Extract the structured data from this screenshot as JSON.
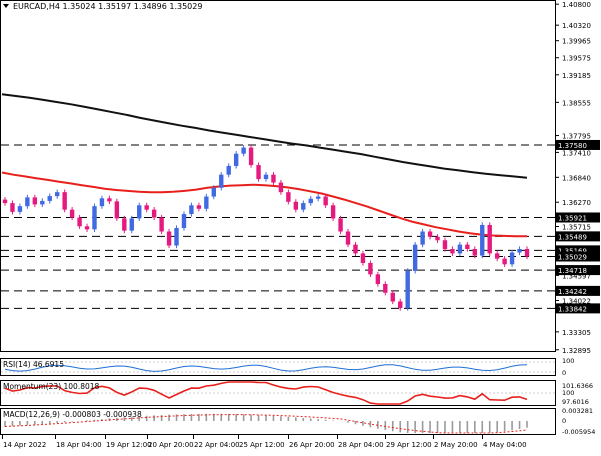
{
  "header": {
    "symbol_line": "EURCAD,H4  1.35024 1.35197 1.34896 1.35029",
    "menu_arrow": "triangle-down-icon"
  },
  "colors": {
    "bull": "#4169e1",
    "bear": "#e6197f",
    "ma_fast": "#e8201c",
    "ma_slow": "#111111",
    "rsi": "#1e6fd9",
    "momentum": "#e8201c",
    "macd_hist": "#9a9a9a",
    "macd_signal": "#e8201c"
  },
  "price_axis": {
    "labels": [
      "1.40800",
      "1.40320",
      "1.39965",
      "1.39575",
      "1.39185",
      "1.38555",
      "1.37795",
      "1.37410",
      "1.36840",
      "1.36270",
      "1.35715",
      "1.34597",
      "1.34022",
      "1.33305",
      "1.32895"
    ]
  },
  "level_boxes": [
    {
      "label": "1.37580",
      "style": "dark"
    },
    {
      "label": "1.35921",
      "style": "dark"
    },
    {
      "label": "1.35489",
      "style": "dark"
    },
    {
      "label": "1.35169",
      "style": "dark"
    },
    {
      "label": "1.35029",
      "style": "dark"
    },
    {
      "label": "1.34718",
      "style": "dark"
    },
    {
      "label": "1.34242",
      "style": "dark"
    },
    {
      "label": "1.33842",
      "style": "dark"
    }
  ],
  "time_axis": {
    "labels": [
      "14 Apr 2022",
      "18 Apr 04:00",
      "19 Apr 12:00",
      "20 Apr 20:00",
      "22 Apr 04:00",
      "25 Apr 12:00",
      "26 Apr 20:00",
      "28 Apr 04:00",
      "29 Apr 12:00",
      "2 May 20:00",
      "4 May 04:00"
    ]
  },
  "indicators": {
    "rsi": {
      "label": "RSI(14) 46.6915",
      "axis": [
        "100",
        "0"
      ]
    },
    "momentum": {
      "label": "Momentum(23) 100.8018",
      "axis": [
        "101.6366",
        "100",
        "97.6016"
      ]
    },
    "macd": {
      "label": "MACD(12,26,9) -0.000803 -0.000938",
      "axis": [
        "0.003281",
        "0",
        "-0.005954"
      ]
    }
  },
  "chart_data": {
    "type": "candlestick",
    "title": "EURCAD,H4",
    "ohlc_readout": [
      1.35024,
      1.35197,
      1.34896,
      1.35029
    ],
    "ylim": [
      1.3289,
      1.4085
    ],
    "horizontal_levels": [
      1.3758,
      1.35921,
      1.35489,
      1.35169,
      1.35029,
      1.34718,
      1.34242,
      1.33842
    ],
    "candles_close": [
      1.3625,
      1.3605,
      1.3618,
      1.3638,
      1.3622,
      1.363,
      1.3641,
      1.365,
      1.361,
      1.3592,
      1.3572,
      1.3565,
      1.3618,
      1.3636,
      1.3629,
      1.359,
      1.3562,
      1.359,
      1.362,
      1.361,
      1.3592,
      1.356,
      1.3528,
      1.3568,
      1.36,
      1.362,
      1.3612,
      1.364,
      1.366,
      1.369,
      1.371,
      1.3738,
      1.3752,
      1.3712,
      1.368,
      1.369,
      1.3672,
      1.365,
      1.3628,
      1.361,
      1.3625,
      1.3635,
      1.364,
      1.362,
      1.359,
      1.356,
      1.353,
      1.351,
      1.3488,
      1.3462,
      1.344,
      1.342,
      1.34,
      1.3385,
      1.347,
      1.353,
      1.356,
      1.3548,
      1.354,
      1.352,
      1.351,
      1.353,
      1.352,
      1.3505,
      1.3575,
      1.351,
      1.3498,
      1.3485,
      1.3512,
      1.352,
      1.3503
    ],
    "ma_fast": [
      1.3695,
      1.369,
      1.3686,
      1.3682,
      1.3678,
      1.3674,
      1.367,
      1.3666,
      1.3662,
      1.3658,
      1.3655,
      1.3653,
      1.3651,
      1.365,
      1.365,
      1.3651,
      1.3653,
      1.3656,
      1.366,
      1.3663,
      1.3665,
      1.3666,
      1.3667,
      1.3666,
      1.3664,
      1.3661,
      1.3657,
      1.3652,
      1.3647,
      1.364,
      1.3633,
      1.3625,
      1.3617,
      1.3608,
      1.3599,
      1.359,
      1.3582,
      1.3576,
      1.357,
      1.3565,
      1.356,
      1.3556,
      1.3553,
      1.3551,
      1.355,
      1.3549,
      1.3549
    ],
    "ma_slow": [
      1.3874,
      1.387,
      1.3866,
      1.3861,
      1.3856,
      1.3851,
      1.3845,
      1.3839,
      1.3833,
      1.3827,
      1.382,
      1.3814,
      1.3808,
      1.3802,
      1.3797,
      1.3791,
      1.3786,
      1.3781,
      1.3776,
      1.3771,
      1.3766,
      1.3761,
      1.3757,
      1.3752,
      1.3747,
      1.3742,
      1.3737,
      1.3731,
      1.3725,
      1.3719,
      1.3714,
      1.3709,
      1.3704,
      1.37,
      1.3696,
      1.3692,
      1.3689,
      1.3686,
      1.3683
    ],
    "rsi_value": 46.6915,
    "momentum_value": 100.8018,
    "macd": {
      "main": -0.000803,
      "signal": -0.000938
    }
  }
}
